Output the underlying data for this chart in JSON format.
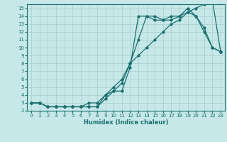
{
  "xlabel": "Humidex (Indice chaleur)",
  "bg_color": "#c6e8e8",
  "grid_color": "#a8cece",
  "line_color": "#1a6e6e",
  "xlim": [
    -0.5,
    23.5
  ],
  "ylim": [
    2,
    15.5
  ],
  "xticks": [
    0,
    1,
    2,
    3,
    4,
    5,
    6,
    7,
    8,
    9,
    10,
    11,
    12,
    13,
    14,
    15,
    16,
    17,
    18,
    19,
    20,
    21,
    22,
    23
  ],
  "yticks": [
    2,
    3,
    4,
    5,
    6,
    7,
    8,
    9,
    10,
    11,
    12,
    13,
    14,
    15
  ],
  "line1_x": [
    0,
    1,
    2,
    3,
    4,
    5,
    6,
    7,
    8,
    9,
    10,
    11,
    12,
    13,
    14,
    15,
    16,
    17,
    18,
    19,
    20,
    21,
    22,
    23
  ],
  "line1_y": [
    3,
    3,
    2.5,
    2.5,
    2.5,
    2.5,
    2.5,
    2.5,
    2.5,
    3.5,
    4.5,
    4.5,
    7.5,
    14,
    14,
    13.5,
    13.5,
    13.5,
    14,
    15,
    14,
    12,
    10,
    9.5
  ],
  "line2_x": [
    0,
    1,
    2,
    3,
    4,
    5,
    6,
    7,
    8,
    9,
    10,
    11,
    12,
    13,
    14,
    15,
    16,
    17,
    18,
    19,
    20,
    21,
    22,
    23
  ],
  "line2_y": [
    3,
    3,
    2.5,
    2.5,
    2.5,
    2.5,
    2.5,
    3,
    3,
    4,
    4.5,
    5.5,
    8,
    11,
    14,
    14,
    13.5,
    14,
    14,
    14.5,
    14,
    12.5,
    10,
    9.5
  ],
  "line3_x": [
    0,
    1,
    2,
    3,
    4,
    5,
    6,
    7,
    8,
    9,
    10,
    11,
    12,
    13,
    14,
    15,
    16,
    17,
    18,
    19,
    20,
    21,
    22,
    23
  ],
  "line3_y": [
    3,
    3,
    2.5,
    2.5,
    2.5,
    2.5,
    2.5,
    2.5,
    2.5,
    4,
    5,
    6,
    8,
    9,
    10,
    11,
    12,
    13,
    13.5,
    14.5,
    15,
    15.5,
    16,
    9.5
  ],
  "xlabel_fontsize": 6,
  "tick_fontsize": 5,
  "linewidth": 0.9,
  "markersize": 2
}
